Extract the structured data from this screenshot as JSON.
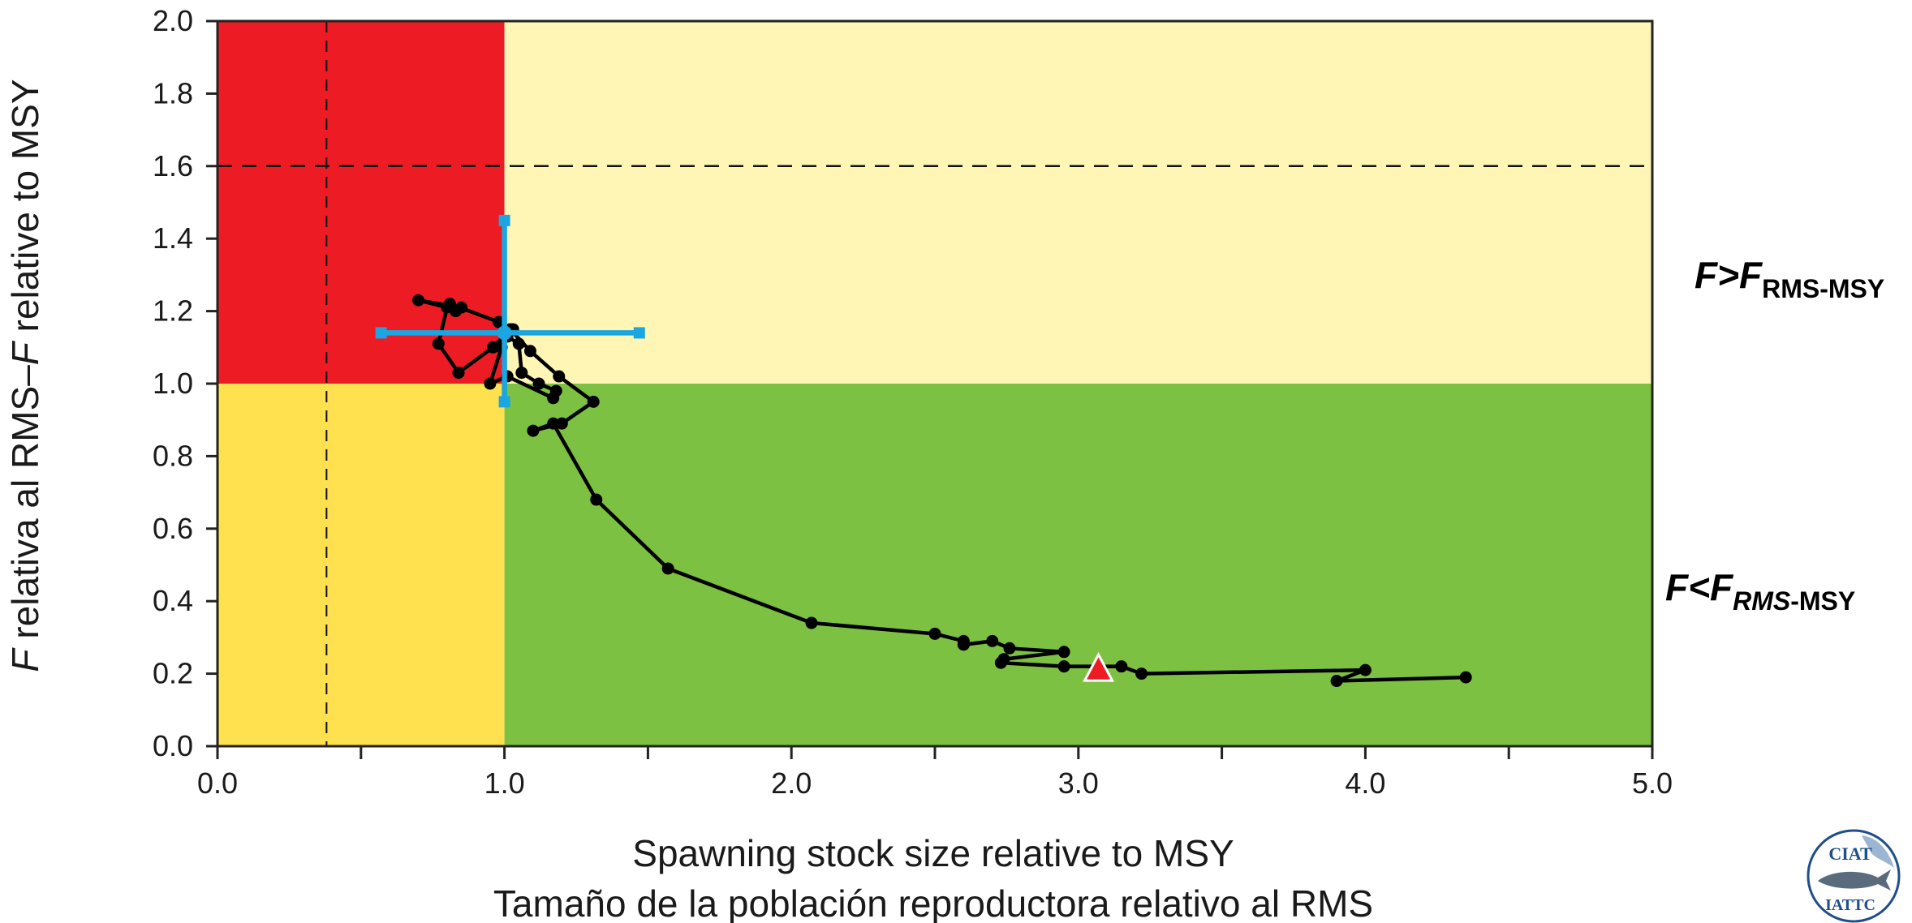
{
  "chart_data": {
    "type": "line",
    "xlabel": "Spawning stock size relative to MSY",
    "xlabel_es": "Tamaño de la población reproductora relativo al RMS",
    "ylabel_pre": "F",
    "ylabel_mid": " relativa al RMS–",
    "ylabel_F2": "F",
    "ylabel_post": " relative to MSY",
    "xlim": [
      0,
      5
    ],
    "ylim": [
      0,
      2
    ],
    "x_ticks": [
      "0.0",
      "1.0",
      "2.0",
      "3.0",
      "4.0",
      "5.0"
    ],
    "y_ticks": [
      "0.0",
      "0.2",
      "0.4",
      "0.6",
      "0.8",
      "1.0",
      "1.2",
      "1.4",
      "1.6",
      "1.8",
      "2.0"
    ],
    "zones": [
      {
        "name": "overfished-overfishing",
        "x": [
          0,
          1
        ],
        "y": [
          1,
          2
        ],
        "color": "#ED1C24"
      },
      {
        "name": "overfishing",
        "x": [
          1,
          5
        ],
        "y": [
          1,
          2
        ],
        "color": "#FFF5B4"
      },
      {
        "name": "overfished",
        "x": [
          0,
          1
        ],
        "y": [
          0,
          1
        ],
        "color": "#FFE04F"
      },
      {
        "name": "healthy",
        "x": [
          1,
          5
        ],
        "y": [
          0,
          1
        ],
        "color": "#7DC142"
      }
    ],
    "reference_lines": {
      "hline_y": 1.6,
      "vline_x": 0.38
    },
    "zone_labels": {
      "upper": {
        "F": "F",
        "op": ">F",
        "sub": "RMS-MSY"
      },
      "lower": {
        "F": "F",
        "op": "<F",
        "sub_italic": "RMS",
        "sub_rest": "-MSY"
      }
    },
    "series": [
      {
        "type": "trajectory",
        "color": "#000000",
        "x": [
          4.35,
          3.9,
          4.0,
          3.22,
          3.15,
          2.95,
          2.73,
          2.74,
          2.95,
          2.76,
          2.7,
          2.6,
          2.6,
          2.5,
          2.07,
          1.57,
          1.32,
          1.17,
          1.1,
          1.2,
          1.31,
          1.19,
          1.09,
          1.02,
          0.96,
          0.84,
          0.77,
          0.8,
          0.7,
          0.85,
          0.83,
          0.81,
          0.98,
          1.01,
          1.05,
          1.06,
          1.12,
          1.18,
          1.17,
          1.01,
          0.95,
          0.99,
          1.03
        ],
        "y": [
          0.19,
          0.18,
          0.21,
          0.2,
          0.22,
          0.22,
          0.23,
          0.24,
          0.26,
          0.27,
          0.29,
          0.28,
          0.29,
          0.31,
          0.34,
          0.49,
          0.68,
          0.89,
          0.87,
          0.89,
          0.95,
          1.02,
          1.09,
          1.15,
          1.1,
          1.03,
          1.11,
          1.21,
          1.23,
          1.21,
          1.2,
          1.22,
          1.17,
          1.13,
          1.11,
          1.03,
          1.0,
          0.98,
          0.96,
          1.02,
          1.0,
          1.1,
          1.15
        ]
      }
    ],
    "current": {
      "x": 3.07,
      "y": 0.21,
      "color": "#ED1C24"
    },
    "estimate": {
      "x": 1.0,
      "y": 1.14,
      "x_range": [
        0.57,
        1.47
      ],
      "y_range": [
        0.95,
        1.45
      ],
      "color": "#1BA6E1"
    }
  },
  "logo": {
    "top_text": "CIAT",
    "bottom_text": "IATTC"
  }
}
